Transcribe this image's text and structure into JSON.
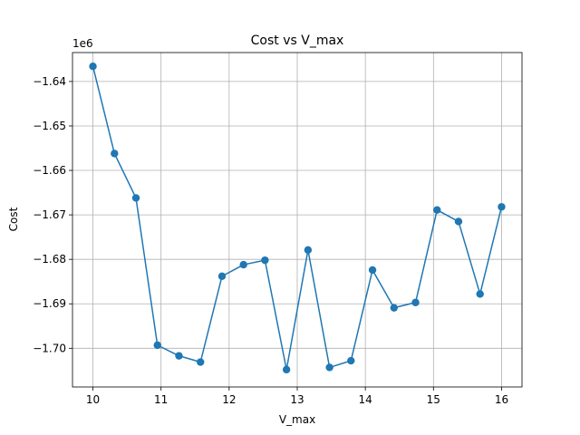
{
  "chart_data": {
    "type": "line",
    "title": "Cost vs V_max",
    "xlabel": "V_max",
    "ylabel": "Cost",
    "y_offset_label": "1e6",
    "xlim": [
      9.7,
      16.3
    ],
    "ylim": [
      -1.7087,
      -1.6335
    ],
    "y_scale_factor": 1000000,
    "grid": true,
    "line_color": "#1f77b4",
    "x_ticks": [
      10,
      11,
      12,
      13,
      14,
      15,
      16
    ],
    "x_tick_labels": [
      "10",
      "11",
      "12",
      "13",
      "14",
      "15",
      "16"
    ],
    "y_ticks": [
      -1.7,
      -1.69,
      -1.68,
      -1.67,
      -1.66,
      -1.65,
      -1.64
    ],
    "y_tick_labels": [
      "−1.70",
      "−1.69",
      "−1.68",
      "−1.67",
      "−1.66",
      "−1.65",
      "−1.64"
    ],
    "series": [
      {
        "x": [
          10.0,
          10.316,
          10.632,
          10.947,
          11.263,
          11.579,
          11.895,
          12.211,
          12.526,
          12.842,
          13.158,
          13.474,
          13.789,
          14.105,
          14.421,
          14.737,
          15.053,
          15.368,
          15.684,
          16.0
        ],
        "y": [
          -1.6366,
          -1.6562,
          -1.6662,
          -1.6993,
          -1.7017,
          -1.7031,
          -1.6838,
          -1.6812,
          -1.6802,
          -1.7048,
          -1.6779,
          -1.7043,
          -1.7028,
          -1.6824,
          -1.6909,
          -1.6897,
          -1.6689,
          -1.6715,
          -1.6878,
          -1.6682
        ]
      }
    ]
  }
}
